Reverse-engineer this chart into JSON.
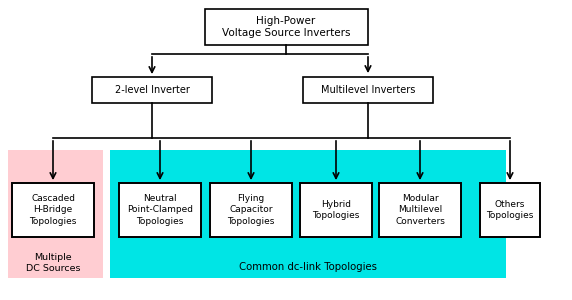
{
  "title": "High-Power\nVoltage Source Inverters",
  "level1_left": "2-level Inverter",
  "level1_right": "Multilevel Inverters",
  "level2_boxes": [
    "Cascaded\nH-Bridge\nTopologies",
    "Neutral\nPoint-Clamped\nTopologies",
    "Flying\nCapacitor\nTopologies",
    "Hybrid\nTopologies",
    "Modular\nMultilevel\nConverters",
    "Others\nTopologies"
  ],
  "pink_label": "Multiple\nDC Sources",
  "cyan_label": "Common dc-link Topologies",
  "pink_color": "#ffcdd2",
  "cyan_color": "#00e5e5",
  "box_bg": "#ffffff",
  "fig_bg": "#ffffff",
  "font_size": 7.0
}
